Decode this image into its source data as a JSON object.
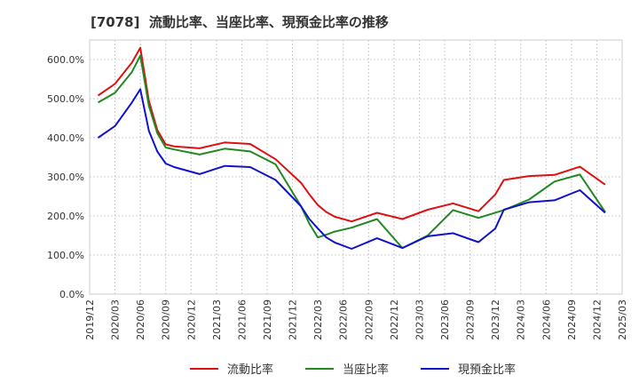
{
  "chart_data": {
    "type": "line",
    "title": "[7078]  流動比率、当座比率、現預金比率の推移",
    "xlabel": "",
    "ylabel": "",
    "ylim": [
      0,
      650
    ],
    "yticks": [
      0,
      100,
      200,
      300,
      400,
      500,
      600
    ],
    "ytick_labels": [
      "0.0%",
      "100.0%",
      "200.0%",
      "300.0%",
      "400.0%",
      "500.0%",
      "600.0%"
    ],
    "xtick_labels": [
      "2019/12",
      "2020/03",
      "2020/06",
      "2020/09",
      "2020/12",
      "2021/03",
      "2021/06",
      "2021/09",
      "2021/12",
      "2022/03",
      "2022/06",
      "2022/09",
      "2022/12",
      "2023/03",
      "2023/06",
      "2023/09",
      "2023/12",
      "2024/03",
      "2024/06",
      "2024/09",
      "2024/12",
      "2025/03"
    ],
    "x_range": [
      2019.9167,
      2025.1667
    ],
    "grid": true,
    "legend_position": "bottom",
    "series": [
      {
        "name": "流動比率",
        "color": "#dd1111",
        "x": [
          2020.0,
          2020.1667,
          2020.3333,
          2020.4167,
          2020.5,
          2020.5833,
          2020.6667,
          2020.75,
          2021.0,
          2021.25,
          2021.5,
          2021.75,
          2022.0,
          2022.0833,
          2022.1667,
          2022.25,
          2022.3333,
          2022.5,
          2022.75,
          2023.0,
          2023.25,
          2023.5,
          2023.75,
          2023.9167,
          2024.0,
          2024.25,
          2024.5,
          2024.75,
          2025.0
        ],
        "y": [
          508,
          538,
          592,
          630,
          495,
          420,
          383,
          378,
          373,
          388,
          384,
          345,
          285,
          255,
          228,
          210,
          198,
          186,
          208,
          192,
          216,
          232,
          212,
          255,
          292,
          302,
          305,
          326,
          280
        ]
      },
      {
        "name": "当座比率",
        "color": "#228822",
        "x": [
          2020.0,
          2020.1667,
          2020.3333,
          2020.4167,
          2020.5,
          2020.5833,
          2020.6667,
          2020.75,
          2021.0,
          2021.25,
          2021.5,
          2021.75,
          2022.0,
          2022.0833,
          2022.1667,
          2022.25,
          2022.3333,
          2022.5,
          2022.75,
          2023.0,
          2023.25,
          2023.5,
          2023.75,
          2024.0,
          2024.25,
          2024.5,
          2024.75,
          2025.0
        ],
        "y": [
          490,
          515,
          568,
          610,
          482,
          412,
          375,
          370,
          357,
          372,
          365,
          332,
          225,
          180,
          145,
          152,
          160,
          170,
          192,
          118,
          150,
          215,
          195,
          215,
          242,
          288,
          306,
          210
        ]
      },
      {
        "name": "現預金比率",
        "color": "#1111cc",
        "x": [
          2020.0,
          2020.1667,
          2020.3333,
          2020.4167,
          2020.5,
          2020.5833,
          2020.6667,
          2020.75,
          2021.0,
          2021.25,
          2021.5,
          2021.75,
          2022.0,
          2022.0833,
          2022.1667,
          2022.25,
          2022.3333,
          2022.5,
          2022.75,
          2023.0,
          2023.25,
          2023.5,
          2023.75,
          2023.9167,
          2024.0,
          2024.25,
          2024.5,
          2024.75,
          2025.0
        ],
        "y": [
          400,
          430,
          490,
          524,
          418,
          365,
          334,
          325,
          307,
          328,
          325,
          292,
          225,
          192,
          168,
          145,
          132,
          116,
          143,
          118,
          148,
          156,
          133,
          168,
          216,
          235,
          240,
          266,
          208
        ]
      }
    ]
  }
}
